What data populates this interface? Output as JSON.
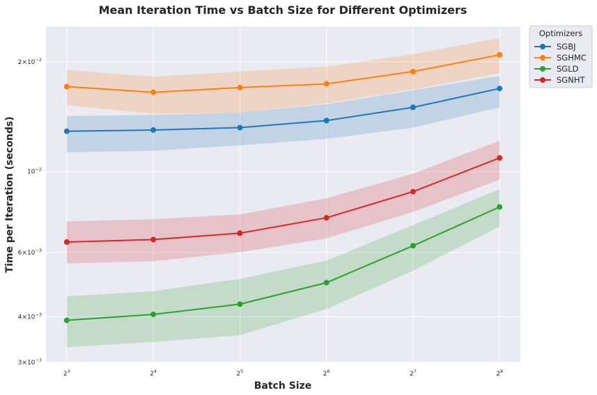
{
  "chart_data": {
    "type": "line",
    "title": "Mean Iteration Time vs Batch Size for Different Optimizers",
    "xlabel": "Batch Size",
    "ylabel": "Time per Iteration (seconds)",
    "x": [
      8,
      16,
      32,
      64,
      128,
      256
    ],
    "x_tick_labels": [
      {
        "base": "2",
        "exp": "3"
      },
      {
        "base": "2",
        "exp": "4"
      },
      {
        "base": "2",
        "exp": "5"
      },
      {
        "base": "2",
        "exp": "6"
      },
      {
        "base": "2",
        "exp": "7"
      },
      {
        "base": "2",
        "exp": "8"
      }
    ],
    "x_scale": "log2",
    "y_scale": "log10",
    "ylim": [
      0.003,
      0.025
    ],
    "y_ticks": [
      {
        "value": 0.003,
        "mantissa": "3",
        "exp": "−3"
      },
      {
        "value": 0.004,
        "mantissa": "4",
        "exp": "−3"
      },
      {
        "value": 0.006,
        "mantissa": "6",
        "exp": "−3"
      },
      {
        "value": 0.01,
        "mantissa": "",
        "exp": "−2"
      },
      {
        "value": 0.02,
        "mantissa": "2",
        "exp": "−2"
      }
    ],
    "grid": true,
    "legend": {
      "title": "Optimizers",
      "placement": "outside-top-right"
    },
    "series": [
      {
        "name": "SGBJ",
        "color": "#1f77b4",
        "values": [
          0.0129,
          0.013,
          0.0132,
          0.0138,
          0.015,
          0.0169
        ],
        "lower": [
          0.0113,
          0.0114,
          0.0118,
          0.0123,
          0.0132,
          0.015
        ],
        "upper": [
          0.0142,
          0.0143,
          0.0145,
          0.0153,
          0.0167,
          0.0183
        ]
      },
      {
        "name": "SGHMC",
        "color": "#ff7f0e",
        "values": [
          0.0171,
          0.0165,
          0.017,
          0.0174,
          0.0188,
          0.0209
        ],
        "lower": [
          0.0152,
          0.0144,
          0.0145,
          0.0154,
          0.0168,
          0.0186
        ],
        "upper": [
          0.019,
          0.0182,
          0.0188,
          0.0194,
          0.021,
          0.0232
        ]
      },
      {
        "name": "SGLD",
        "color": "#2ca02c",
        "values": [
          0.00391,
          0.00406,
          0.00433,
          0.00496,
          0.00626,
          0.008
        ],
        "lower": [
          0.0033,
          0.00341,
          0.00356,
          0.0042,
          0.00535,
          0.00707
        ],
        "upper": [
          0.00455,
          0.0047,
          0.00508,
          0.0057,
          0.00713,
          0.00895
        ]
      },
      {
        "name": "SGNHT",
        "color": "#d62728",
        "values": [
          0.00641,
          0.00651,
          0.00678,
          0.00747,
          0.00881,
          0.0109
        ],
        "lower": [
          0.0056,
          0.00568,
          0.00601,
          0.00656,
          0.00775,
          0.00951
        ],
        "upper": [
          0.0073,
          0.0074,
          0.00763,
          0.00845,
          0.00986,
          0.01216
        ]
      }
    ]
  }
}
